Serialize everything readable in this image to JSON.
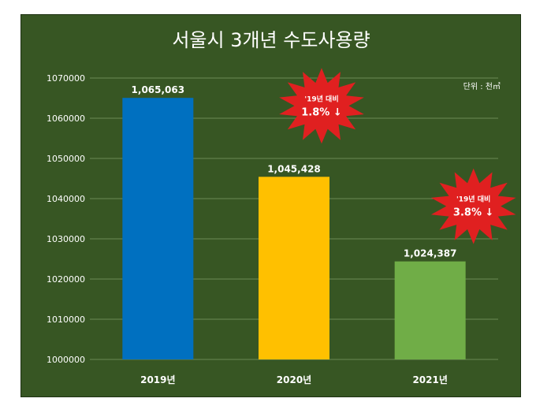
{
  "chart_data": {
    "type": "bar",
    "title": "서울시 3개년 수도사용량",
    "unit_label": "단위 : 천㎥",
    "categories": [
      "2019년",
      "2020년",
      "2021년"
    ],
    "values": [
      1065063,
      1045428,
      1024387
    ],
    "value_labels": [
      "1,065,063",
      "1,045,428",
      "1,024,387"
    ],
    "bar_colors": [
      "#0070c0",
      "#ffc000",
      "#70ad47"
    ],
    "ylim": [
      1000000,
      1070000
    ],
    "yticks": [
      1000000,
      1010000,
      1020000,
      1030000,
      1040000,
      1050000,
      1060000,
      1070000
    ],
    "grid": true,
    "xlabel": "",
    "ylabel": "",
    "annotations": [
      {
        "category_index": 1,
        "line1": "'19년 대비",
        "line2": "1.8% ↓"
      },
      {
        "category_index": 2,
        "line1": "'19년 대비",
        "line2": "3.8% ↓"
      }
    ],
    "colors": {
      "background": "#375623",
      "grid": "#6b8a55",
      "burst": "#e02020"
    }
  }
}
